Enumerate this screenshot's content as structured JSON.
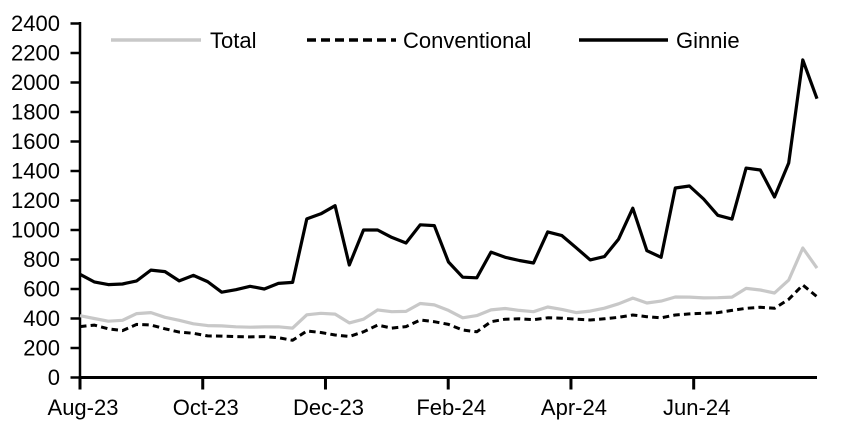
{
  "chart_data": {
    "type": "line",
    "title": "",
    "legend_position": "top",
    "grid": false,
    "y_axis": {
      "min": 0,
      "max": 2400,
      "step": 200,
      "tick_labels": [
        "0",
        "200",
        "400",
        "600",
        "800",
        "1000",
        "1200",
        "1400",
        "1600",
        "1800",
        "2000",
        "2200",
        "2400"
      ]
    },
    "x_axis": {
      "tick_labels": [
        "Aug-23",
        "Oct-23",
        "Dec-23",
        "Feb-24",
        "Apr-24",
        "Jun-24"
      ],
      "tick_indices": [
        0,
        8.66,
        17.32,
        25.98,
        34.64,
        43.3
      ],
      "point_count": 53
    },
    "series": [
      {
        "name": "Total",
        "color": "#c8c8c8",
        "dash": "solid",
        "values": [
          419,
          400,
          382,
          388,
          433,
          440,
          408,
          388,
          364,
          352,
          350,
          344,
          341,
          343,
          344,
          335,
          425,
          435,
          430,
          370,
          395,
          458,
          446,
          448,
          502,
          492,
          455,
          405,
          420,
          458,
          468,
          455,
          446,
          478,
          462,
          440,
          450,
          470,
          500,
          538,
          505,
          518,
          546,
          545,
          540,
          541,
          545,
          604,
          593,
          573,
          660,
          878,
          742
        ]
      },
      {
        "name": "Conventional",
        "color": "#000000",
        "dash": "dashed",
        "values": [
          345,
          355,
          330,
          318,
          360,
          356,
          330,
          308,
          300,
          282,
          281,
          277,
          275,
          277,
          270,
          252,
          315,
          305,
          288,
          278,
          310,
          355,
          335,
          345,
          390,
          378,
          360,
          322,
          310,
          378,
          395,
          398,
          392,
          405,
          402,
          395,
          390,
          398,
          408,
          424,
          412,
          405,
          424,
          431,
          435,
          440,
          455,
          469,
          476,
          469,
          530,
          627,
          548
        ]
      },
      {
        "name": "Ginnie",
        "color": "#000000",
        "dash": "solid",
        "values": [
          700,
          648,
          630,
          634,
          655,
          728,
          718,
          655,
          692,
          650,
          578,
          595,
          618,
          600,
          638,
          645,
          1075,
          1110,
          1165,
          763,
          1000,
          1000,
          950,
          912,
          1035,
          1030,
          783,
          680,
          676,
          850,
          815,
          793,
          776,
          987,
          962,
          880,
          797,
          820,
          938,
          1148,
          860,
          815,
          1285,
          1298,
          1210,
          1100,
          1074,
          1420,
          1407,
          1224,
          1454,
          2153,
          1890
        ]
      }
    ]
  }
}
